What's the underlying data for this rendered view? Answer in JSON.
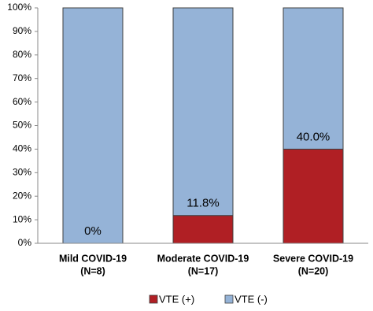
{
  "chart_data": {
    "type": "stacked_bar",
    "categories": [
      [
        "Mild COVID-19",
        "(N=8)"
      ],
      [
        "Moderate COVID-19",
        "(N=17)"
      ],
      [
        "Severe COVID-19",
        "(N=20)"
      ]
    ],
    "series": [
      {
        "name": "VTE (+)",
        "color": "#b01f24",
        "values": [
          0,
          11.8,
          40.0
        ],
        "value_labels": [
          "0%",
          "11.8%",
          "40.0%"
        ]
      },
      {
        "name": "VTE (-)",
        "color": "#95b3d7",
        "values": [
          100,
          88.2,
          60.0
        ]
      }
    ],
    "ylim": [
      0,
      100
    ],
    "yticks": [
      {
        "value": 0,
        "label": "0%"
      },
      {
        "value": 10,
        "label": "10%"
      },
      {
        "value": 20,
        "label": "20%"
      },
      {
        "value": 30,
        "label": "30%"
      },
      {
        "value": 40,
        "label": "40%"
      },
      {
        "value": 50,
        "label": "50%"
      },
      {
        "value": 60,
        "label": "60%"
      },
      {
        "value": 70,
        "label": "70%"
      },
      {
        "value": 80,
        "label": "80%"
      },
      {
        "value": 90,
        "label": "90%"
      },
      {
        "value": 100,
        "label": "100%"
      }
    ],
    "grid": false,
    "legend": "bottom"
  }
}
